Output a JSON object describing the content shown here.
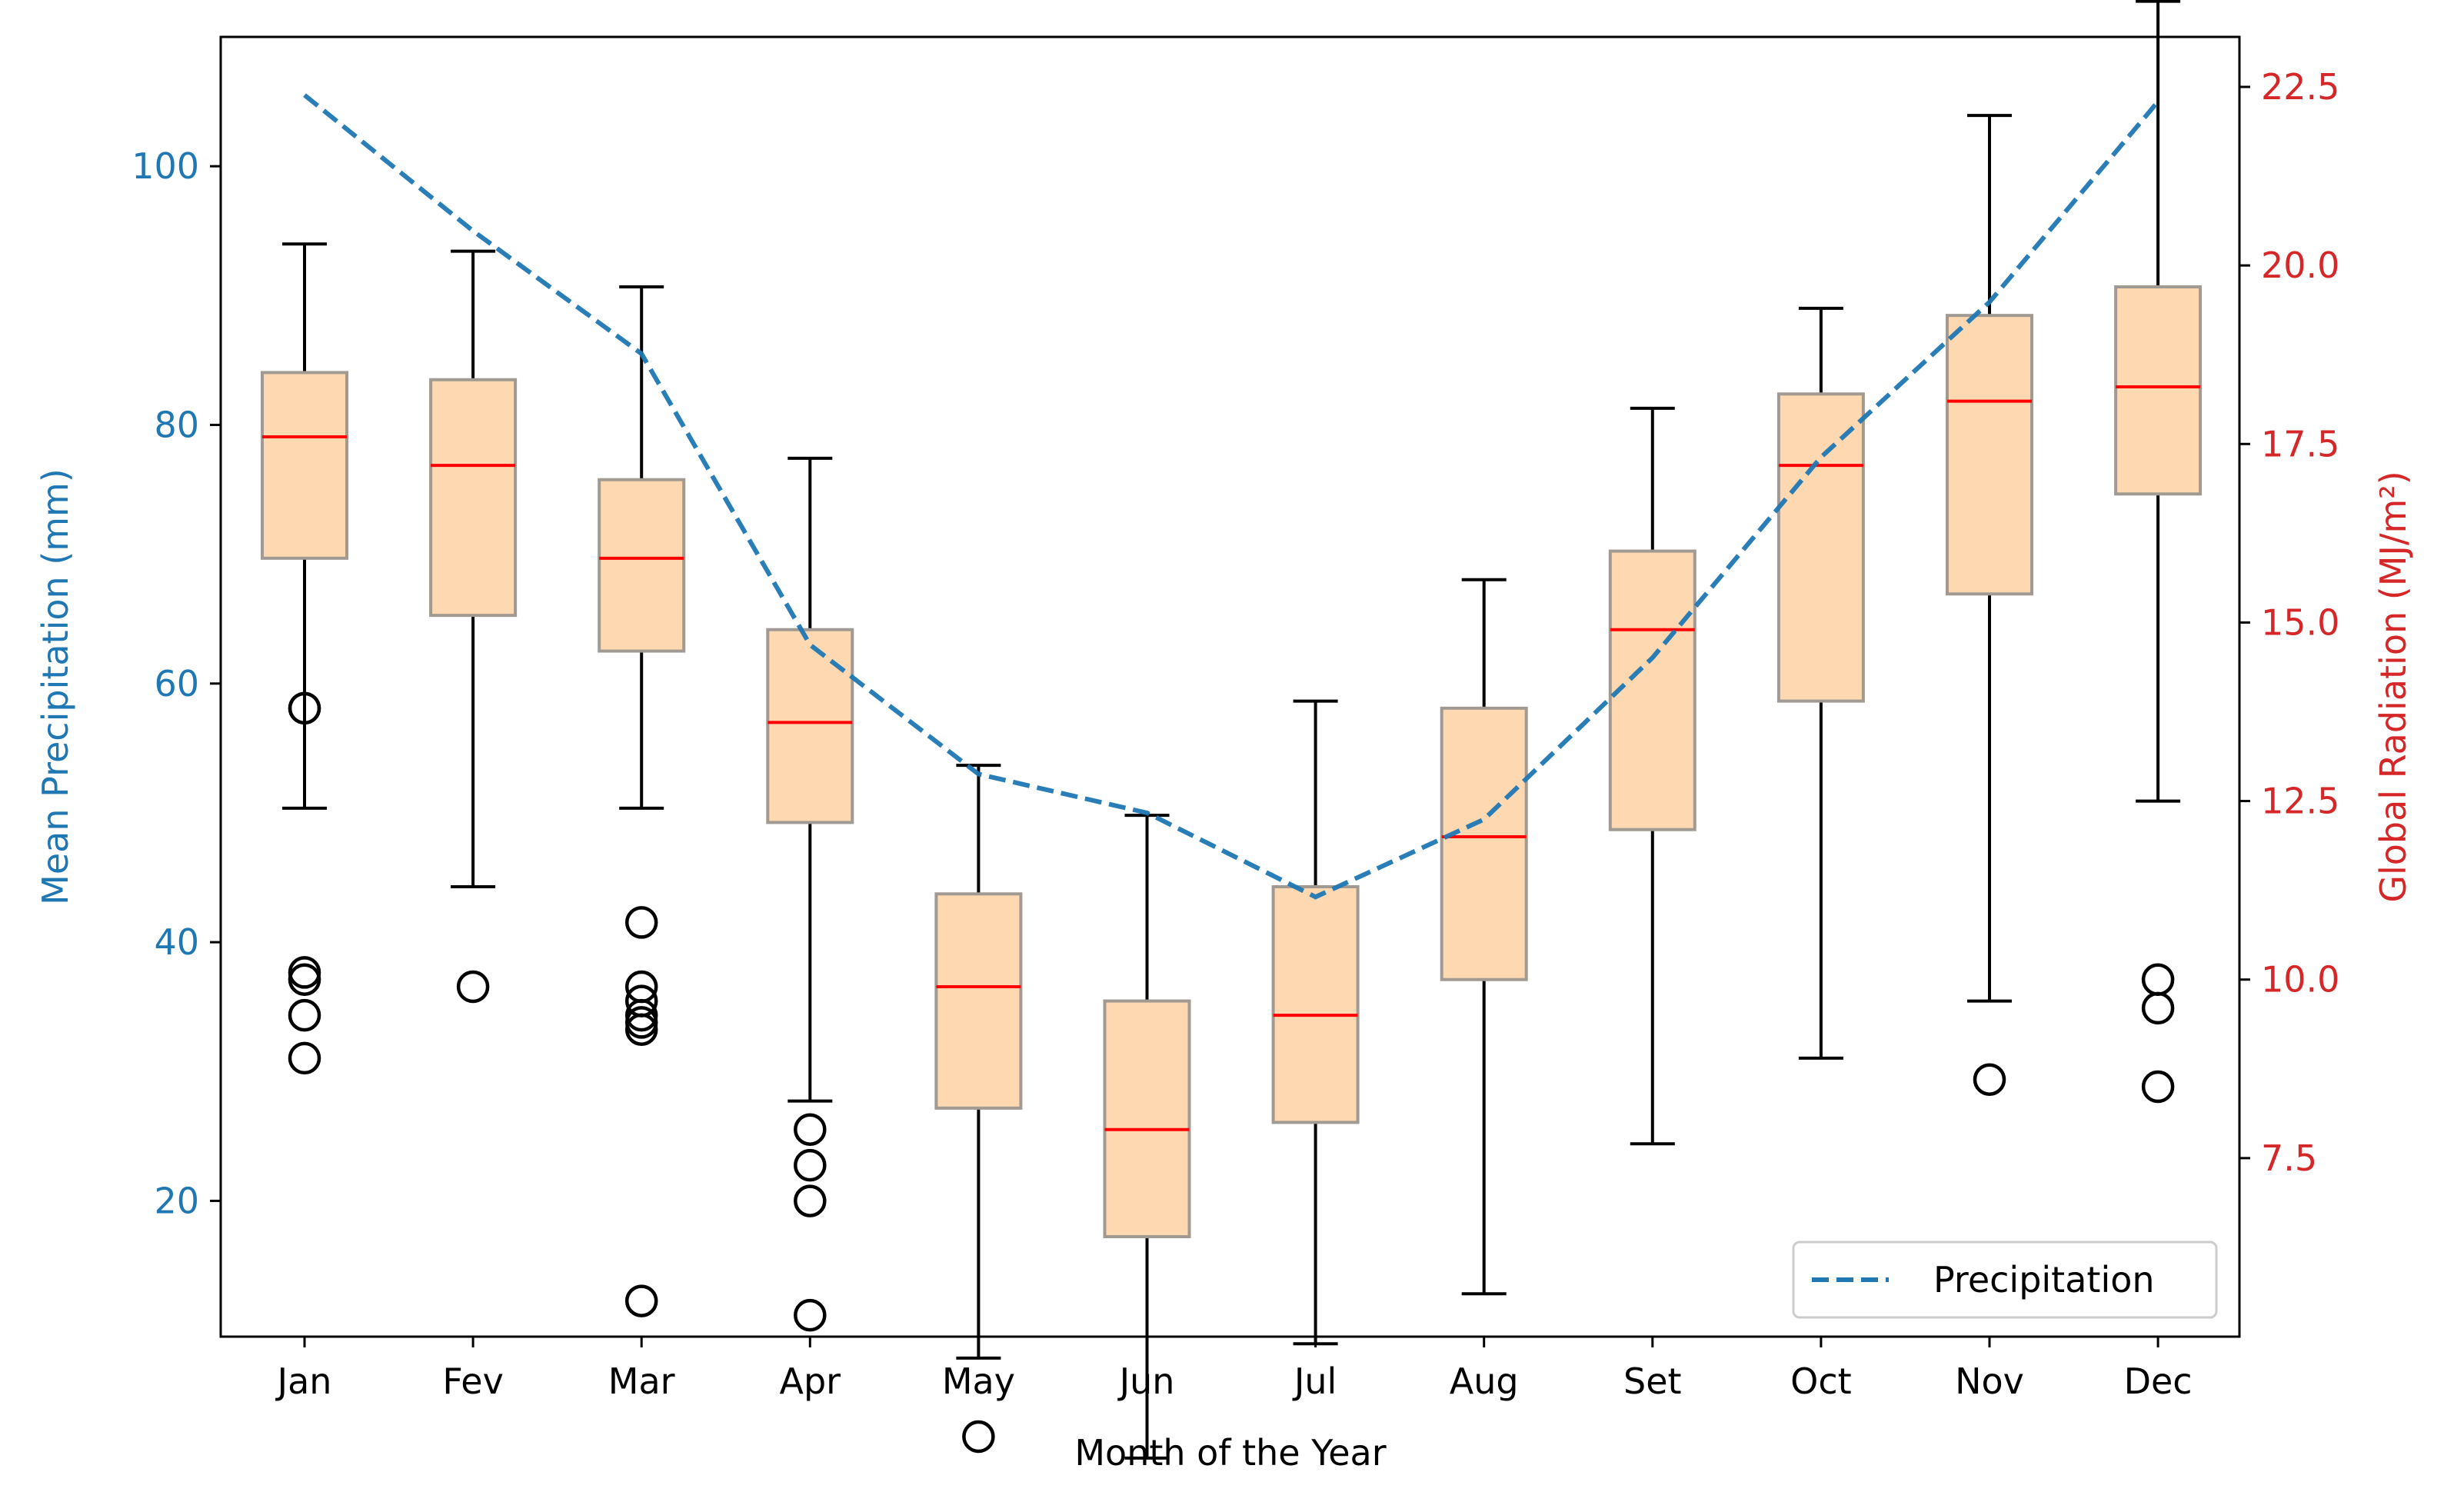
{
  "chart_data": {
    "type": "box",
    "categories": [
      "Jan",
      "Fev",
      "Mar",
      "Apr",
      "May",
      "Jun",
      "Jul",
      "Aug",
      "Set",
      "Oct",
      "Nov",
      "Dec"
    ],
    "xlabel": "Month of the Year",
    "y_left": {
      "label": "Mean Precipitation (mm)",
      "range": [
        9.5,
        110
      ],
      "ticks": [
        "20",
        "40",
        "60",
        "80",
        "100"
      ],
      "color": "#1f77b4"
    },
    "y_right": {
      "label": "Global Radiation (MJ/m²)",
      "range": [
        5.0,
        23.2
      ],
      "ticks": [
        "7.5",
        "10.0",
        "12.5",
        "15.0",
        "17.5",
        "20.0",
        "22.5"
      ],
      "color": "#d62728"
    },
    "radiation_boxes": [
      {
        "whisker_low": 12.4,
        "q1": 15.9,
        "median": 17.6,
        "q3": 18.5,
        "whisker_high": 20.3,
        "outliers": [
          10.0,
          10.1,
          8.9,
          9.5,
          13.8,
          13.8
        ]
      },
      {
        "whisker_low": 11.3,
        "q1": 15.1,
        "median": 17.2,
        "q3": 18.4,
        "whisker_high": 20.2,
        "outliers": [
          9.9
        ]
      },
      {
        "whisker_low": 12.4,
        "q1": 14.6,
        "median": 15.9,
        "q3": 17.0,
        "whisker_high": 19.7,
        "outliers": [
          5.5,
          9.4,
          9.3,
          9.5,
          9.7,
          9.9,
          10.8
        ]
      },
      {
        "whisker_low": 8.3,
        "q1": 12.2,
        "median": 13.6,
        "q3": 14.9,
        "whisker_high": 17.3,
        "outliers": [
          5.3,
          6.9,
          7.4,
          7.9
        ]
      },
      {
        "whisker_low": 4.7,
        "q1": 8.2,
        "median": 9.9,
        "q3": 11.2,
        "whisker_high": 13.0,
        "outliers": [
          3.6
        ]
      },
      {
        "whisker_low": 3.3,
        "q1": 6.4,
        "median": 7.9,
        "q3": 9.7,
        "whisker_high": 12.3
      },
      {
        "whisker_low": 4.9,
        "q1": 8.0,
        "median": 9.5,
        "q3": 11.3,
        "whisker_high": 13.9
      },
      {
        "whisker_low": 5.6,
        "q1": 10.0,
        "median": 12.0,
        "q3": 13.8,
        "whisker_high": 15.6
      },
      {
        "whisker_low": 7.7,
        "q1": 12.1,
        "median": 14.9,
        "q3": 16.0,
        "whisker_high": 18.0
      },
      {
        "whisker_low": 8.9,
        "q1": 13.9,
        "median": 17.2,
        "q3": 18.2,
        "whisker_high": 19.4
      },
      {
        "whisker_low": 9.7,
        "q1": 15.4,
        "median": 18.1,
        "q3": 19.3,
        "whisker_high": 22.1,
        "outliers": [
          8.6
        ]
      },
      {
        "whisker_low": 12.5,
        "q1": 16.8,
        "median": 18.3,
        "q3": 19.7,
        "whisker_high": 23.7,
        "outliers": [
          10.0,
          9.6,
          8.5
        ]
      }
    ],
    "series": [
      {
        "name": "Precipitation",
        "axis": "left",
        "style": "dashed",
        "color": "#1f77b4",
        "values": [
          105.5,
          95.0,
          85.5,
          63.0,
          53.0,
          50.0,
          43.5,
          49.5,
          62.0,
          77.5,
          89.5,
          105.0
        ]
      }
    ],
    "legend": {
      "position": "bottom-right"
    },
    "grid": false
  }
}
